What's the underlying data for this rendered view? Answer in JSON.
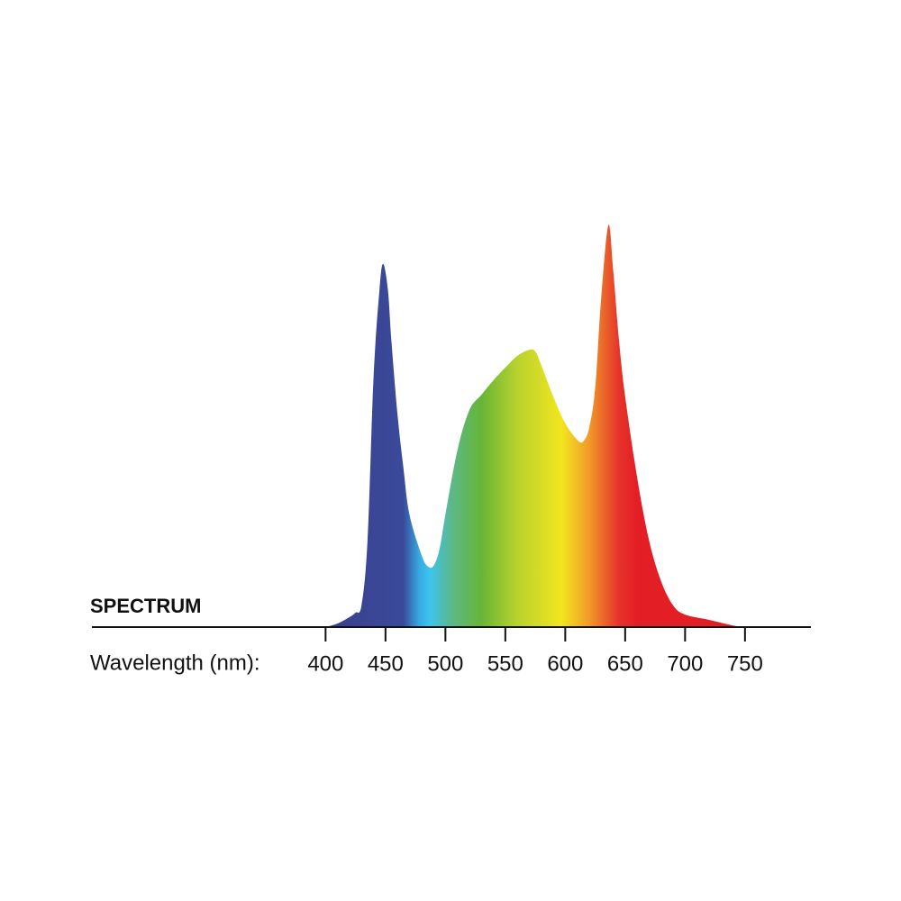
{
  "chart_data": {
    "type": "area",
    "title": "SPECTRUM",
    "x_label": "Wavelength (nm):",
    "x": [
      400,
      410,
      420,
      425,
      430,
      435,
      440,
      445,
      448,
      452,
      455,
      460,
      465,
      470,
      480,
      485,
      490,
      495,
      500,
      510,
      520,
      530,
      540,
      550,
      560,
      570,
      575,
      580,
      590,
      600,
      610,
      615,
      620,
      625,
      630,
      636,
      640,
      645,
      650,
      660,
      670,
      680,
      690,
      700,
      720,
      740,
      750
    ],
    "values": [
      0,
      0.9,
      2.5,
      3.6,
      5.4,
      21.5,
      61.9,
      84,
      90.4,
      84,
      71,
      53,
      39.5,
      28,
      18,
      15.2,
      15.2,
      19.3,
      28,
      44,
      54,
      57.8,
      61.4,
      64.6,
      67.5,
      69,
      68.6,
      65.2,
      57.4,
      50.7,
      46.6,
      46.2,
      49.6,
      59.6,
      82,
      100,
      88.8,
      70.9,
      57.4,
      37.2,
      21.5,
      11.4,
      5.4,
      3.1,
      1.8,
      0.4,
      0
    ],
    "xlim": [
      205,
      805
    ],
    "ylim": [
      0,
      100
    ],
    "xticks": [
      400,
      450,
      500,
      550,
      600,
      650,
      700,
      750
    ],
    "gradient": [
      {
        "x": 400,
        "color": "#3b3f8e"
      },
      {
        "x": 465,
        "color": "#3a4a9a"
      },
      {
        "x": 478,
        "color": "#36a9e1"
      },
      {
        "x": 487,
        "color": "#3cc4ef"
      },
      {
        "x": 505,
        "color": "#5cb88a"
      },
      {
        "x": 530,
        "color": "#66b536"
      },
      {
        "x": 560,
        "color": "#b9d22e"
      },
      {
        "x": 597,
        "color": "#f2e61e"
      },
      {
        "x": 620,
        "color": "#f09a2a"
      },
      {
        "x": 645,
        "color": "#e5322a"
      },
      {
        "x": 660,
        "color": "#e31e24"
      }
    ]
  }
}
